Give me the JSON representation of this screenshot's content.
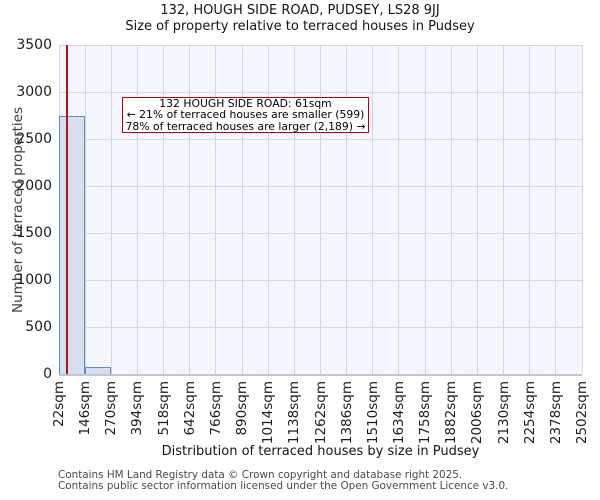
{
  "header": {
    "title": "132, HOUGH SIDE ROAD, PUDSEY, LS28 9JJ",
    "subtitle": "Size of property relative to terraced houses in Pudsey"
  },
  "annotation": {
    "line1": "132 HOUGH SIDE ROAD: 61sqm",
    "line2": "← 21% of terraced houses are smaller (599)",
    "line3": "78% of terraced houses are larger (2,189) →"
  },
  "footer": {
    "line1": "Contains HM Land Registry data © Crown copyright and database right 2025.",
    "line2": "Contains public sector information licensed under the Open Government Licence v3.0."
  },
  "chart_data": {
    "type": "bar",
    "title": "132, HOUGH SIDE ROAD, PUDSEY, LS28 9JJ",
    "subtitle": "Size of property relative to terraced houses in Pudsey",
    "xlabel": "Distribution of terraced houses by size in Pudsey",
    "ylabel": "Number of terraced properties",
    "bin_edges_sqm": [
      22,
      146,
      270,
      394,
      518,
      642,
      766,
      890,
      1014,
      1138,
      1262,
      1386,
      1510,
      1634,
      1758,
      1882,
      2006,
      2130,
      2254,
      2378,
      2502
    ],
    "bin_labels": [
      "22sqm",
      "146sqm",
      "270sqm",
      "394sqm",
      "518sqm",
      "642sqm",
      "766sqm",
      "890sqm",
      "1014sqm",
      "1138sqm",
      "1262sqm",
      "1386sqm",
      "1510sqm",
      "1634sqm",
      "1758sqm",
      "1882sqm",
      "2006sqm",
      "2130sqm",
      "2254sqm",
      "2378sqm",
      "2502sqm"
    ],
    "counts": [
      2740,
      75,
      0,
      0,
      0,
      0,
      0,
      0,
      0,
      0,
      0,
      0,
      0,
      0,
      0,
      0,
      0,
      0,
      0,
      0
    ],
    "ylim": [
      0,
      3500
    ],
    "yticks": [
      0,
      500,
      1000,
      1500,
      2000,
      2500,
      3000,
      3500
    ],
    "marker_value_sqm": 61,
    "marker_label": "132 HOUGH SIDE ROAD: 61sqm",
    "smaller_pct": "21%",
    "smaller_count": 599,
    "larger_pct": "78%",
    "larger_count": 2189,
    "grid": true,
    "legend": "none",
    "colors": {
      "bar_fill": "#d4dff1",
      "bar_border": "#5f8dc3",
      "marker_line": "#b31312",
      "annotation_border": "#c00000",
      "plot_background": "#f3f7fd",
      "gridline": "#d7d7d7"
    }
  }
}
